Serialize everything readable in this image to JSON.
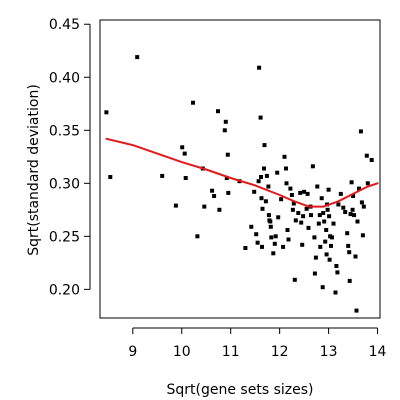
{
  "chart_data": {
    "type": "scatter",
    "title": "",
    "xlabel": "Sqrt(gene sets sizes)",
    "ylabel": "Sqrt(standard deviation)",
    "xlim": [
      8.33,
      14.05
    ],
    "ylim": [
      0.173,
      0.454
    ],
    "xticks": [
      9,
      10,
      11,
      12,
      13,
      14
    ],
    "yticks": [
      0.2,
      0.25,
      0.3,
      0.35,
      0.4,
      0.45
    ],
    "xtick_labels": [
      "9",
      "10",
      "11",
      "12",
      "13",
      "14"
    ],
    "ytick_labels": [
      "0.20",
      "0.25",
      "0.30",
      "0.35",
      "0.40",
      "0.45"
    ],
    "grid": false,
    "legend": "none",
    "colors": {
      "points": "#000000",
      "trend": "#e31a1c"
    },
    "series": [
      {
        "kind": "points",
        "x": [
          8.46,
          8.54,
          9.09,
          9.6,
          9.88,
          10.01,
          10.06,
          10.08,
          10.23,
          10.32,
          10.43,
          10.46,
          10.62,
          10.66,
          10.74,
          10.77,
          10.88,
          10.9,
          10.92,
          10.94,
          10.95,
          11.18,
          11.3,
          11.42,
          11.48,
          11.52,
          11.55,
          11.57,
          11.58,
          11.61,
          11.62,
          11.63,
          11.64,
          11.65,
          11.68,
          11.69,
          11.72,
          11.74,
          11.77,
          11.78,
          11.79,
          11.81,
          11.82,
          11.83,
          11.87,
          11.9,
          11.92,
          11.95,
          11.97,
          12.03,
          12.07,
          12.1,
          12.13,
          12.14,
          12.16,
          12.18,
          12.22,
          12.25,
          12.27,
          12.29,
          12.31,
          12.33,
          12.38,
          12.42,
          12.44,
          12.46,
          12.48,
          12.5,
          12.55,
          12.57,
          12.59,
          12.63,
          12.64,
          12.68,
          12.71,
          12.72,
          12.74,
          12.77,
          12.8,
          12.82,
          12.83,
          12.86,
          12.88,
          12.89,
          12.91,
          12.93,
          12.95,
          12.96,
          12.97,
          12.98,
          13.0,
          13.01,
          13.02,
          13.03,
          13.05,
          13.07,
          13.1,
          13.14,
          13.16,
          13.18,
          13.2,
          13.25,
          13.3,
          13.34,
          13.38,
          13.4,
          13.42,
          13.43,
          13.45,
          13.47,
          13.49,
          13.5,
          13.52,
          13.55,
          13.57,
          13.59,
          13.62,
          13.66,
          13.68,
          13.7,
          13.72,
          13.78,
          13.8,
          13.88
        ],
        "y": [
          0.367,
          0.306,
          0.419,
          0.307,
          0.279,
          0.334,
          0.328,
          0.305,
          0.376,
          0.25,
          0.314,
          0.278,
          0.293,
          0.288,
          0.368,
          0.275,
          0.35,
          0.358,
          0.305,
          0.327,
          0.291,
          0.302,
          0.239,
          0.259,
          0.292,
          0.252,
          0.244,
          0.302,
          0.409,
          0.362,
          0.306,
          0.286,
          0.24,
          0.276,
          0.314,
          0.336,
          0.283,
          0.307,
          0.297,
          0.27,
          0.265,
          0.264,
          0.259,
          0.249,
          0.234,
          0.243,
          0.25,
          0.31,
          0.268,
          0.285,
          0.24,
          0.325,
          0.314,
          0.3,
          0.256,
          0.247,
          0.295,
          0.289,
          0.275,
          0.281,
          0.209,
          0.265,
          0.272,
          0.291,
          0.263,
          0.242,
          0.269,
          0.292,
          0.276,
          0.29,
          0.258,
          0.278,
          0.27,
          0.316,
          0.249,
          0.215,
          0.23,
          0.297,
          0.262,
          0.27,
          0.24,
          0.286,
          0.202,
          0.272,
          0.264,
          0.245,
          0.256,
          0.233,
          0.28,
          0.275,
          0.294,
          0.269,
          0.228,
          0.25,
          0.241,
          0.249,
          0.262,
          0.197,
          0.222,
          0.216,
          0.28,
          0.29,
          0.277,
          0.273,
          0.253,
          0.241,
          0.235,
          0.208,
          0.271,
          0.301,
          0.275,
          0.288,
          0.27,
          0.231,
          0.18,
          0.264,
          0.295,
          0.349,
          0.282,
          0.251,
          0.278,
          0.326,
          0.3,
          0.322
        ]
      },
      {
        "kind": "trend",
        "x": [
          8.46,
          9.0,
          9.5,
          10.0,
          10.5,
          11.0,
          11.5,
          12.0,
          12.3,
          12.6,
          12.9,
          13.2,
          13.5,
          13.8,
          14.0
        ],
        "y": [
          0.342,
          0.336,
          0.328,
          0.32,
          0.313,
          0.305,
          0.298,
          0.289,
          0.283,
          0.278,
          0.278,
          0.283,
          0.29,
          0.297,
          0.3
        ]
      }
    ]
  }
}
